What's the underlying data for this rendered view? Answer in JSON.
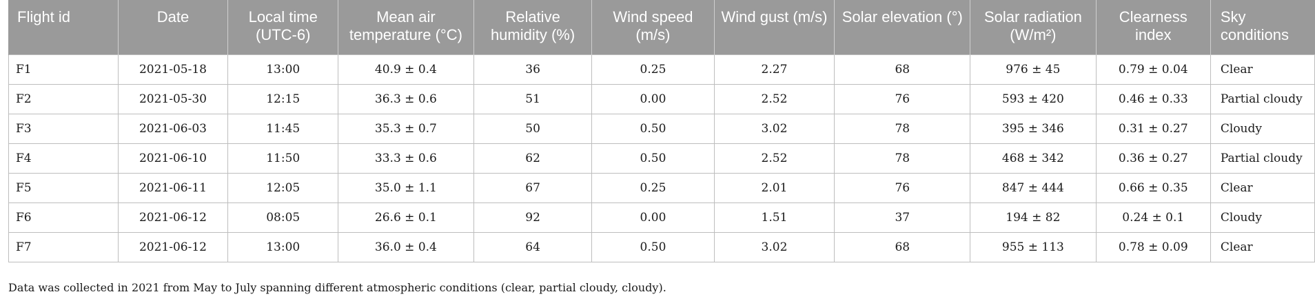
{
  "table": {
    "headers": [
      "Flight id",
      "Date",
      "Local time (UTC-6)",
      "Mean air temperature (°C)",
      "Relative humidity (%)",
      "Wind speed (m/s)",
      "Wind gust (m/s)",
      "Solar elevation (°)",
      "Solar radiation (W/m²)",
      "Clearness index",
      "Sky conditions"
    ],
    "rows": [
      [
        "F1",
        "2021-05-18",
        "13:00",
        "40.9 ± 0.4",
        "36",
        "0.25",
        "2.27",
        "68",
        "976 ± 45",
        "0.79 ± 0.04",
        "Clear"
      ],
      [
        "F2",
        "2021-05-30",
        "12:15",
        "36.3 ± 0.6",
        "51",
        "0.00",
        "2.52",
        "76",
        "593 ± 420",
        "0.46 ± 0.33",
        "Partial cloudy"
      ],
      [
        "F3",
        "2021-06-03",
        "11:45",
        "35.3 ± 0.7",
        "50",
        "0.50",
        "3.02",
        "78",
        "395 ± 346",
        "0.31 ± 0.27",
        "Cloudy"
      ],
      [
        "F4",
        "2021-06-10",
        "11:50",
        "33.3 ± 0.6",
        "62",
        "0.50",
        "2.52",
        "78",
        "468 ± 342",
        "0.36 ± 0.27",
        "Partial cloudy"
      ],
      [
        "F5",
        "2021-06-11",
        "12:05",
        "35.0 ± 1.1",
        "67",
        "0.25",
        "2.01",
        "76",
        "847 ± 444",
        "0.66 ± 0.35",
        "Clear"
      ],
      [
        "F6",
        "2021-06-12",
        "08:05",
        "26.6 ± 0.1",
        "92",
        "0.00",
        "1.51",
        "37",
        "194 ± 82",
        "0.24 ± 0.1",
        "Cloudy"
      ],
      [
        "F7",
        "2021-06-12",
        "13:00",
        "36.0 ± 0.4",
        "64",
        "0.50",
        "3.02",
        "68",
        "955 ± 113",
        "0.78 ± 0.09",
        "Clear"
      ]
    ]
  },
  "footnote": "Data was collected in 2021 from May to July spanning different atmospheric conditions (clear, partial cloudy, cloudy)."
}
